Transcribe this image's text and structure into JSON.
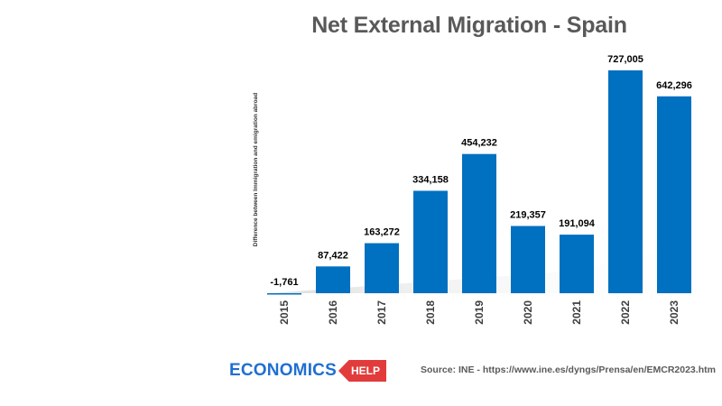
{
  "chart_data": {
    "type": "bar",
    "title": "Net External Migration - Spain",
    "ylabel": "Difference between Immigration and emigration abroad",
    "xlabel": "",
    "categories": [
      "2015",
      "2016",
      "2017",
      "2018",
      "2019",
      "2020",
      "2021",
      "2022",
      "2023"
    ],
    "values": [
      -1761,
      87422,
      163272,
      334158,
      454232,
      219357,
      191094,
      727005,
      642296
    ],
    "data_labels": [
      "-1,761",
      "87,422",
      "163,272",
      "334,158",
      "454,232",
      "219,357",
      "191,094",
      "727,005",
      "642,296"
    ],
    "ylim": [
      0,
      727005
    ],
    "grid": false,
    "legend": "none",
    "bar_color": "#0070c0"
  },
  "source": "Source: INE - https://www.ine.es/dyngs/Prensa/en/EMCR2023.htm",
  "logo": {
    "word": "ECONOMICS",
    "tag": "HELP"
  }
}
